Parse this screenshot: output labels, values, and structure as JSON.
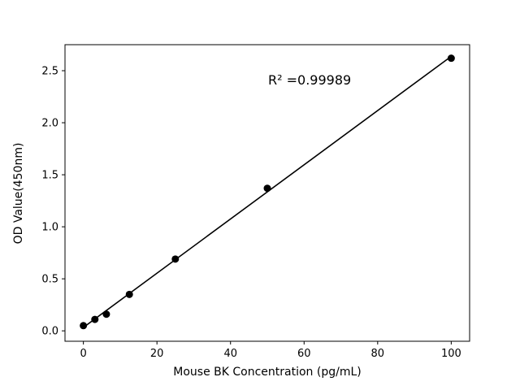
{
  "chart_data": {
    "type": "scatter",
    "title": "",
    "xlabel": "Mouse BK Concentration (pg/mL)",
    "ylabel": "OD Value(450nm)",
    "series": [
      {
        "name": "standard-curve-points",
        "x": [
          0,
          3.125,
          6.25,
          12.5,
          25,
          50,
          100
        ],
        "y": [
          0.05,
          0.11,
          0.16,
          0.35,
          0.69,
          1.37,
          2.62
        ]
      }
    ],
    "fit_line": {
      "x": [
        0,
        100
      ],
      "y": [
        0.033,
        2.638
      ]
    },
    "annotation": {
      "text": "R² =0.99989",
      "r_squared": 0.99989,
      "x": 50,
      "y": 2.42
    },
    "xlim": [
      -5,
      105
    ],
    "ylim": [
      -0.1,
      2.75
    ],
    "xticks": [
      0,
      20,
      40,
      60,
      80,
      100
    ],
    "xtick_labels": [
      "0",
      "20",
      "40",
      "60",
      "80",
      "100"
    ],
    "yticks": [
      0.0,
      0.5,
      1.0,
      1.5,
      2.0,
      2.5
    ],
    "ytick_labels": [
      "0.0",
      "0.5",
      "1.0",
      "1.5",
      "2.0",
      "2.5"
    ],
    "grid": false,
    "legend": false,
    "line_color": "#000000",
    "marker_color": "#000000",
    "background_color": "#ffffff"
  }
}
